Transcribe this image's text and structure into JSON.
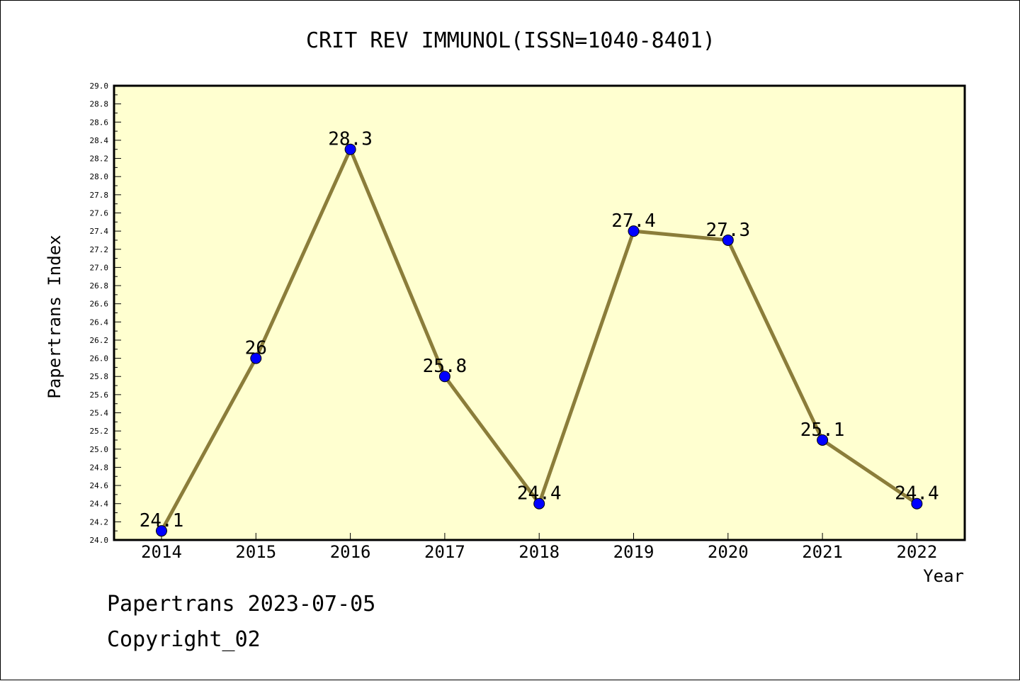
{
  "chart_data": {
    "type": "line",
    "title": "CRIT REV IMMUNOL(ISSN=1040-8401)",
    "xlabel": "Year",
    "ylabel": "Papertrans Index",
    "categories": [
      "2014",
      "2015",
      "2016",
      "2017",
      "2018",
      "2019",
      "2020",
      "2021",
      "2022"
    ],
    "series": [
      {
        "values": [
          24.1,
          26.0,
          28.3,
          25.8,
          24.4,
          27.4,
          27.3,
          25.1,
          24.4
        ],
        "labels": [
          "24.1",
          "26",
          "28.3",
          "25.8",
          "24.4",
          "27.4",
          "27.3",
          "25.1",
          "24.4"
        ]
      }
    ],
    "ylim": [
      24.0,
      29.0
    ],
    "yticks": [
      "24.0",
      "24.2",
      "24.4",
      "24.6",
      "24.8",
      "25.0",
      "25.2",
      "25.4",
      "25.6",
      "25.8",
      "26.0",
      "26.2",
      "26.4",
      "26.6",
      "26.8",
      "27.0",
      "27.2",
      "27.4",
      "27.6",
      "27.8",
      "28.0",
      "28.2",
      "28.4",
      "28.6",
      "28.8",
      "29.0"
    ],
    "grid": false,
    "colors": {
      "plot_background": "#ffffd0",
      "line": "#8b7d3a",
      "marker": "#0000ff"
    }
  },
  "footer": {
    "source": "Papertrans 2023-07-05",
    "copyright": "Copyright_02"
  }
}
